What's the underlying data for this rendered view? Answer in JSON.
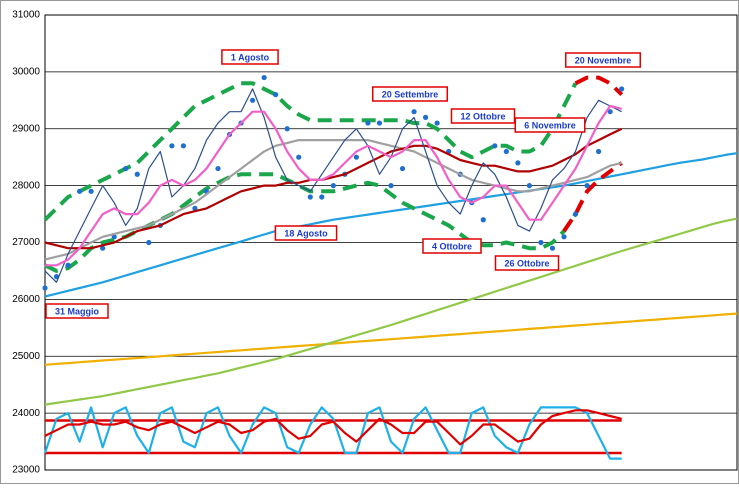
{
  "chart_data": {
    "type": "line",
    "ylim": [
      23000,
      31000
    ],
    "yticks": [
      23000,
      24000,
      25000,
      26000,
      27000,
      28000,
      29000,
      30000,
      31000
    ],
    "grid": true,
    "annotations": [
      "1 Agosto",
      "20 Settembre",
      "12 Ottobre",
      "6 Novembre",
      "20 Novembre",
      "18 Agosto",
      "4 Ottobre",
      "26 Ottobre",
      "31 Maggio"
    ],
    "hlines": [
      {
        "value": 23870,
        "color": "#e00000"
      },
      {
        "value": 23300,
        "color": "#e00000"
      }
    ],
    "series": [
      {
        "color": "#f0b000",
        "style": "thick",
        "values": [
          24850,
          24865,
          24880,
          24895,
          24910,
          24925,
          24940,
          24955,
          24970,
          24985,
          25000,
          25015,
          25030,
          25045,
          25060,
          25075,
          25090,
          25105,
          25120,
          25135,
          25150,
          25165,
          25180,
          25195,
          25210,
          25225,
          25240,
          25255,
          25270,
          25285,
          25300,
          25315,
          25330,
          25345,
          25360,
          25375,
          25390,
          25405,
          25420,
          25435,
          25450,
          25465,
          25480,
          25495,
          25510,
          25525,
          25540,
          25555,
          25570,
          25585,
          25600,
          25615,
          25630,
          25645,
          25660,
          25675,
          25690,
          25705,
          25720,
          25735,
          25750
        ]
      },
      {
        "color": "#92c84a",
        "style": "thick",
        "values": [
          24150,
          24180,
          24210,
          24240,
          24270,
          24300,
          24340,
          24380,
          24420,
          24460,
          24500,
          24540,
          24580,
          24620,
          24660,
          24700,
          24750,
          24800,
          24850,
          24900,
          24950,
          25010,
          25070,
          25130,
          25190,
          25250,
          25310,
          25370,
          25430,
          25490,
          25550,
          25615,
          25680,
          25745,
          25810,
          25875,
          25940,
          26005,
          26070,
          26135,
          26200,
          26265,
          26330,
          26395,
          26460,
          26525,
          26590,
          26655,
          26720,
          26785,
          26850,
          26910,
          26970,
          27030,
          27090,
          27150,
          27210,
          27270,
          27330,
          27380,
          27420
        ]
      },
      {
        "color": "#1fa0e0",
        "style": "thick",
        "values": [
          26050,
          26100,
          26150,
          26200,
          26250,
          26300,
          26360,
          26420,
          26480,
          26540,
          26600,
          26660,
          26720,
          26780,
          26840,
          26900,
          26960,
          27020,
          27080,
          27140,
          27200,
          27240,
          27280,
          27320,
          27360,
          27400,
          27430,
          27460,
          27490,
          27520,
          27550,
          27580,
          27610,
          27640,
          27670,
          27700,
          27730,
          27760,
          27790,
          27820,
          27850,
          27880,
          27910,
          27940,
          27970,
          28000,
          28040,
          28080,
          28120,
          28160,
          28200,
          28240,
          28280,
          28320,
          28360,
          28400,
          28430,
          28460,
          28500,
          28540,
          28570
        ]
      },
      {
        "color": "#1aa64a",
        "style": "dashed",
        "values": [
          27400,
          27600,
          27800,
          27900,
          28000,
          28100,
          28200,
          28300,
          28400,
          28600,
          28800,
          29000,
          29200,
          29400,
          29500,
          29600,
          29700,
          29800,
          29800,
          29700,
          29600,
          29400,
          29250,
          29150,
          29150,
          29150,
          29150,
          29150,
          29150,
          29150,
          29150,
          29150,
          29100,
          29100,
          29000,
          28800,
          28600,
          28500,
          28600,
          28700,
          28700,
          28600,
          28600,
          28700,
          29000,
          29400,
          29800,
          null,
          null,
          null,
          null
        ]
      },
      {
        "color": "#1aa64a",
        "style": "dashed",
        "values": [
          26600,
          26500,
          26550,
          26700,
          26900,
          27000,
          27050,
          27100,
          27200,
          27300,
          27400,
          27500,
          27650,
          27800,
          27950,
          28050,
          28150,
          28200,
          28200,
          28200,
          28200,
          28100,
          28000,
          27900,
          27900,
          27900,
          27950,
          28000,
          28050,
          28000,
          27850,
          27700,
          27600,
          27500,
          27400,
          27300,
          27150,
          27000,
          26950,
          26950,
          27000,
          26950,
          26900,
          26900,
          27000,
          27200,
          27500,
          null,
          null,
          null,
          null
        ]
      },
      {
        "color": "#e00000",
        "style": "dashed",
        "values": [
          null,
          null,
          null,
          null,
          null,
          null,
          null,
          null,
          null,
          null,
          null,
          null,
          null,
          null,
          null,
          null,
          null,
          null,
          null,
          null,
          null,
          null,
          null,
          null,
          null,
          null,
          null,
          null,
          null,
          null,
          null,
          null,
          null,
          null,
          null,
          null,
          null,
          null,
          null,
          null,
          null,
          null,
          null,
          null,
          null,
          null,
          29800,
          29900,
          29900,
          29800,
          29600
        ]
      },
      {
        "color": "#e00000",
        "style": "dashed",
        "values": [
          null,
          null,
          null,
          null,
          null,
          null,
          null,
          null,
          null,
          null,
          null,
          null,
          null,
          null,
          null,
          null,
          null,
          null,
          null,
          null,
          null,
          null,
          null,
          null,
          null,
          null,
          null,
          null,
          null,
          null,
          null,
          null,
          null,
          null,
          null,
          null,
          null,
          null,
          null,
          null,
          null,
          null,
          null,
          null,
          null,
          27200,
          27500,
          27900,
          28100,
          28250,
          28400
        ]
      },
      {
        "color": "#1f6fd0",
        "style": "dots",
        "values": [
          26200,
          26400,
          26600,
          27900,
          27900,
          26900,
          27100,
          28300,
          28200,
          27000,
          27300,
          28700,
          28700,
          27600,
          27900,
          28300,
          28900,
          29100,
          29500,
          29900,
          29600,
          29000,
          28500,
          27800,
          27800,
          28000,
          28200,
          28500,
          29100,
          29100,
          28000,
          28300,
          29300,
          29200,
          29100,
          28600,
          28200,
          27700,
          27400,
          28700,
          28600,
          28400,
          28000,
          27000,
          26900,
          27100,
          27500,
          28000,
          28600,
          29300,
          29700
        ]
      },
      {
        "color": "#a0a0a0",
        "style": "thick",
        "values": [
          26700,
          26750,
          26800,
          26900,
          27000,
          27100,
          27150,
          27200,
          27250,
          27300,
          27400,
          27500,
          27600,
          27700,
          27850,
          28000,
          28150,
          28300,
          28450,
          28600,
          28700,
          28750,
          28800,
          28800,
          28800,
          28800,
          28800,
          28800,
          28800,
          28750,
          28700,
          28650,
          28600,
          28500,
          28400,
          28300,
          28200,
          28100,
          28050,
          28000,
          27950,
          27900,
          27900,
          27950,
          28000,
          28050,
          28100,
          28150,
          28250,
          28350,
          28400
        ]
      },
      {
        "color": "#b00000",
        "style": "thick",
        "values": [
          27000,
          26950,
          26900,
          26900,
          26900,
          26950,
          27000,
          27100,
          27200,
          27250,
          27300,
          27400,
          27500,
          27550,
          27600,
          27700,
          27800,
          27900,
          27950,
          28000,
          28000,
          28050,
          28050,
          28100,
          28100,
          28150,
          28200,
          28300,
          28400,
          28500,
          28600,
          28650,
          28700,
          28700,
          28650,
          28550,
          28450,
          28400,
          28350,
          28350,
          28300,
          28250,
          28250,
          28300,
          28350,
          28450,
          28550,
          28700,
          28800,
          28900,
          29000
        ]
      },
      {
        "color": "#2b4f8f",
        "style": "solid",
        "values": [
          26500,
          26300,
          26800,
          27200,
          27600,
          28000,
          27700,
          27300,
          27600,
          28300,
          28600,
          27800,
          28000,
          28300,
          28800,
          29100,
          29300,
          29300,
          29700,
          29200,
          28500,
          28100,
          28000,
          27900,
          28200,
          28500,
          28800,
          29000,
          28700,
          28200,
          28500,
          29000,
          29200,
          28600,
          28000,
          27700,
          27500,
          28000,
          28400,
          28200,
          27800,
          27300,
          27200,
          27600,
          28100,
          28300,
          28600,
          29200,
          29500,
          29400,
          29300
        ]
      },
      {
        "color": "#f060c8",
        "style": "thick",
        "values": [
          26600,
          26600,
          26700,
          26900,
          27200,
          27500,
          27600,
          27500,
          27500,
          27700,
          28000,
          28100,
          28000,
          28100,
          28300,
          28600,
          28900,
          29100,
          29300,
          29300,
          29000,
          28600,
          28300,
          28100,
          28100,
          28200,
          28400,
          28600,
          28700,
          28600,
          28500,
          28600,
          28800,
          28800,
          28500,
          28100,
          27800,
          27700,
          27800,
          28000,
          28000,
          27700,
          27400,
          27400,
          27700,
          28000,
          28300,
          28700,
          29100,
          29400,
          29350
        ]
      },
      {
        "color": "#1fb0e8",
        "style": "thick",
        "values": [
          23300,
          23900,
          24000,
          23500,
          24100,
          23400,
          24000,
          24100,
          23600,
          23300,
          24000,
          24100,
          23500,
          23400,
          24000,
          24100,
          23600,
          23300,
          23800,
          24100,
          24000,
          23400,
          23300,
          23800,
          24100,
          23900,
          23300,
          23300,
          24000,
          24100,
          23500,
          23300,
          23900,
          24100,
          23700,
          23300,
          23300,
          24000,
          24100,
          23600,
          23400,
          23300,
          23800,
          24100,
          24100,
          24100,
          24100,
          24000,
          23600,
          23200,
          23200
        ]
      },
      {
        "color": "#e00000",
        "style": "thick",
        "values": [
          23600,
          23700,
          23800,
          23800,
          23850,
          23800,
          23800,
          23850,
          23750,
          23700,
          23800,
          23850,
          23750,
          23650,
          23750,
          23850,
          23800,
          23650,
          23700,
          23850,
          23900,
          23700,
          23550,
          23600,
          23800,
          23850,
          23650,
          23500,
          23700,
          23900,
          23800,
          23650,
          23650,
          23850,
          23850,
          23650,
          23450,
          23600,
          23800,
          23800,
          23650,
          23500,
          23550,
          23800,
          23950,
          24000,
          24050,
          24050,
          24000,
          23950,
          23900
        ]
      }
    ]
  }
}
